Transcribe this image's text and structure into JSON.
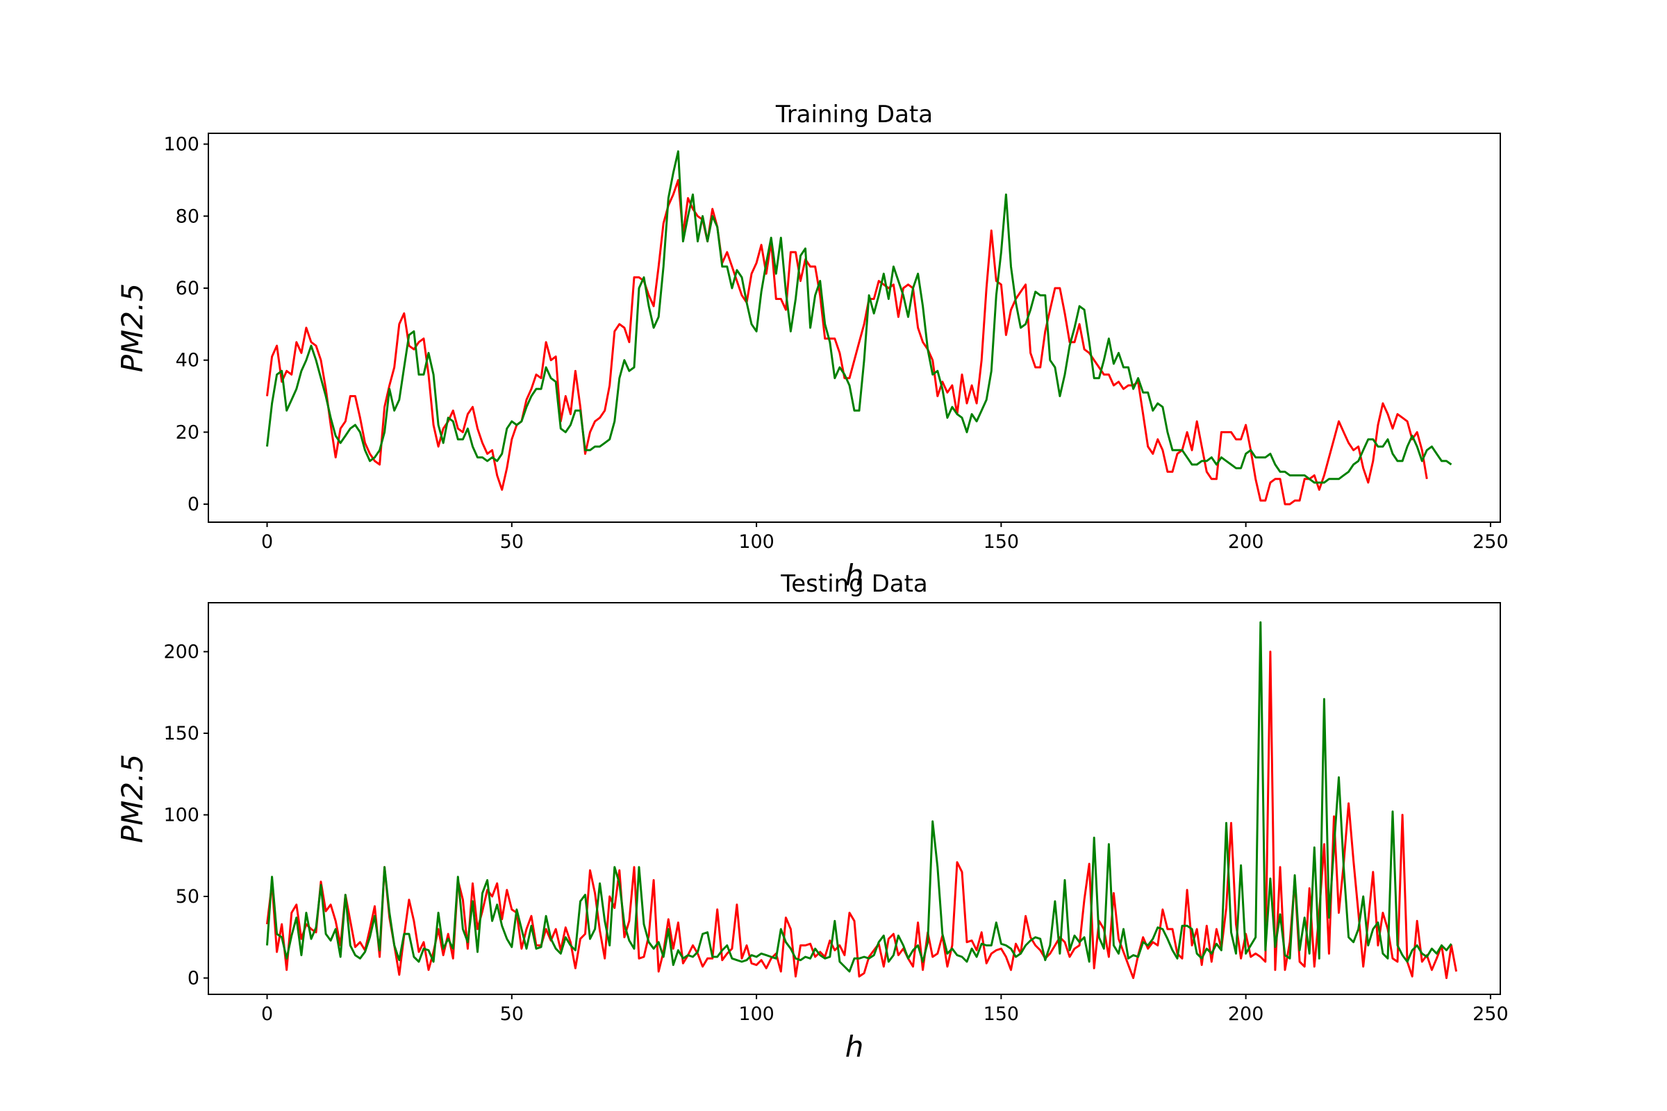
{
  "colors": {
    "red_series": "#ff0000",
    "green_series": "#008000",
    "axes": "#000000",
    "background": "#ffffff"
  },
  "chart_data": [
    {
      "type": "line",
      "title": "Training Data",
      "xlabel": "h",
      "ylabel": "PM2.5",
      "xlim": [
        -12,
        252
      ],
      "ylim": [
        -5,
        103
      ],
      "xticks": [
        0,
        50,
        100,
        150,
        200,
        250
      ],
      "yticks": [
        0,
        20,
        40,
        60,
        80,
        100
      ],
      "grid": false,
      "series": [
        {
          "color": "#ff0000",
          "values": [
            30,
            41,
            44,
            34,
            37,
            36,
            45,
            42,
            49,
            45,
            44,
            40,
            32,
            22,
            13,
            21,
            23,
            30,
            30,
            24,
            17,
            14,
            12,
            11,
            27,
            33,
            38,
            50,
            53,
            44,
            43,
            45,
            46,
            36,
            22,
            16,
            21,
            23,
            26,
            21,
            20,
            25,
            27,
            21,
            17,
            14,
            15,
            8,
            4,
            10,
            18,
            22,
            23,
            29,
            32,
            36,
            35,
            45,
            40,
            41,
            23,
            30,
            25,
            37,
            27,
            14,
            20,
            23,
            24,
            26,
            33,
            48,
            50,
            49,
            45,
            63,
            63,
            62,
            58,
            55,
            66,
            78,
            83,
            86,
            90,
            75,
            85,
            82,
            80,
            79,
            73,
            82,
            77,
            67,
            70,
            66,
            62,
            58,
            56,
            64,
            67,
            72,
            64,
            73,
            57,
            57,
            54,
            70,
            70,
            62,
            68,
            66,
            66,
            58,
            46,
            46,
            46,
            42,
            35,
            35,
            40,
            45,
            50,
            57,
            57,
            62,
            61,
            60,
            61,
            52,
            60,
            61,
            60,
            49,
            45,
            43,
            40,
            30,
            34,
            31,
            33,
            25,
            36,
            28,
            33,
            28,
            40,
            60,
            76,
            62,
            61,
            47,
            54,
            57,
            59,
            61,
            42,
            38,
            38,
            48,
            54,
            60,
            60,
            53,
            45,
            45,
            50,
            43,
            42,
            40,
            38,
            36,
            36,
            33,
            34,
            32,
            33,
            33,
            34,
            25,
            16,
            14,
            18,
            15,
            9,
            9,
            14,
            15,
            20,
            15,
            23,
            16,
            9,
            7,
            7,
            20,
            20,
            20,
            18,
            18,
            22,
            15,
            7,
            1,
            1,
            6,
            7,
            7,
            0,
            0,
            1,
            1,
            7,
            7,
            8,
            4,
            8,
            13,
            18,
            23,
            20,
            17,
            15,
            16,
            10,
            6,
            12,
            22,
            28,
            25,
            21,
            25,
            24,
            23,
            18,
            20,
            15,
            7
          ]
        },
        {
          "color": "#008000",
          "values": [
            16,
            28,
            36,
            37,
            26,
            29,
            32,
            37,
            40,
            44,
            40,
            35,
            30,
            24,
            19,
            17,
            19,
            21,
            22,
            20,
            15,
            12,
            13,
            15,
            20,
            32,
            26,
            29,
            38,
            47,
            48,
            36,
            36,
            42,
            36,
            22,
            17,
            24,
            23,
            18,
            18,
            21,
            16,
            13,
            13,
            12,
            13,
            12,
            14,
            21,
            23,
            22,
            23,
            27,
            30,
            32,
            32,
            38,
            35,
            34,
            21,
            20,
            22,
            26,
            26,
            15,
            15,
            16,
            16,
            17,
            18,
            23,
            35,
            40,
            37,
            38,
            60,
            63,
            55,
            49,
            52,
            66,
            85,
            92,
            98,
            73,
            80,
            86,
            73,
            80,
            73,
            80,
            77,
            66,
            66,
            60,
            65,
            63,
            56,
            50,
            48,
            59,
            67,
            74,
            64,
            74,
            59,
            48,
            57,
            69,
            71,
            49,
            58,
            62,
            50,
            45,
            35,
            38,
            36,
            33,
            26,
            26,
            40,
            58,
            53,
            58,
            64,
            57,
            66,
            62,
            58,
            52,
            60,
            64,
            55,
            43,
            36,
            37,
            32,
            24,
            27,
            25,
            24,
            20,
            25,
            23,
            26,
            29,
            37,
            58,
            70,
            86,
            66,
            56,
            49,
            50,
            54,
            59,
            58,
            58,
            40,
            38,
            30,
            36,
            44,
            49,
            55,
            54,
            45,
            35,
            35,
            40,
            46,
            39,
            42,
            38,
            38,
            32,
            35,
            31,
            31,
            26,
            28,
            27,
            20,
            15,
            15,
            15,
            13,
            11,
            11,
            12,
            12,
            13,
            11,
            13,
            12,
            11,
            10,
            10,
            14,
            15,
            13,
            13,
            13,
            14,
            11,
            9,
            9,
            8,
            8,
            8,
            8,
            7,
            6,
            6,
            6,
            7,
            7,
            7,
            8,
            9,
            11,
            12,
            15,
            18,
            18,
            16,
            16,
            18,
            14,
            12,
            12,
            16,
            19,
            16,
            12,
            15,
            16,
            14,
            12,
            12,
            11
          ]
        }
      ]
    },
    {
      "type": "line",
      "title": "Testing Data",
      "xlabel": "h",
      "ylabel": "PM2.5",
      "xlim": [
        -12,
        252
      ],
      "ylim": [
        -10,
        230
      ],
      "xticks": [
        0,
        50,
        100,
        150,
        200,
        250
      ],
      "yticks": [
        0,
        50,
        100,
        150,
        200
      ],
      "grid": false,
      "series": [
        {
          "color": "#ff0000",
          "values": [
            33,
            58,
            16,
            33,
            5,
            40,
            45,
            24,
            33,
            30,
            28,
            59,
            41,
            45,
            35,
            20,
            51,
            35,
            19,
            22,
            17,
            30,
            44,
            13,
            68,
            37,
            20,
            2,
            26,
            48,
            35,
            16,
            22,
            5,
            16,
            30,
            14,
            27,
            12,
            60,
            48,
            18,
            58,
            30,
            41,
            54,
            50,
            58,
            36,
            54,
            42,
            40,
            18,
            30,
            38,
            20,
            20,
            30,
            23,
            30,
            17,
            31,
            22,
            6,
            24,
            27,
            66,
            52,
            29,
            12,
            50,
            43,
            66,
            25,
            35,
            68,
            12,
            13,
            26,
            60,
            4,
            16,
            36,
            18,
            34,
            9,
            14,
            20,
            15,
            7,
            12,
            12,
            42,
            11,
            15,
            18,
            45,
            12,
            20,
            9,
            8,
            11,
            6,
            12,
            15,
            4,
            37,
            30,
            1,
            20,
            20,
            21,
            13,
            16,
            13,
            23,
            17,
            20,
            14,
            40,
            35,
            1,
            3,
            13,
            17,
            21,
            7,
            24,
            27,
            14,
            18,
            12,
            7,
            34,
            5,
            28,
            13,
            15,
            26,
            7,
            20,
            71,
            65,
            22,
            23,
            17,
            28,
            9,
            15,
            17,
            18,
            13,
            5,
            21,
            15,
            38,
            25,
            20,
            17,
            12,
            15,
            20,
            25,
            22,
            13,
            18,
            20,
            48,
            70,
            6,
            35,
            30,
            13,
            52,
            24,
            16,
            8,
            0,
            14,
            25,
            18,
            22,
            20,
            42,
            30,
            30,
            15,
            12,
            54,
            20,
            30,
            8,
            32,
            10,
            30,
            18,
            43,
            95,
            33,
            12,
            27,
            13,
            15,
            13,
            10,
            200,
            5,
            68,
            5,
            22,
            60,
            10,
            7,
            55,
            7,
            40,
            82,
            15,
            99,
            40,
            70,
            107,
            72,
            40,
            7,
            35,
            65,
            20,
            40,
            30,
            12,
            10,
            100,
            10,
            1,
            35,
            10,
            14,
            5,
            12,
            20,
            0,
            20,
            4
          ]
        },
        {
          "color": "#008000",
          "values": [
            20,
            62,
            27,
            25,
            12,
            26,
            37,
            14,
            40,
            24,
            31,
            57,
            27,
            23,
            30,
            13,
            51,
            20,
            14,
            12,
            16,
            25,
            38,
            17,
            68,
            40,
            20,
            11,
            27,
            27,
            13,
            10,
            18,
            17,
            10,
            40,
            18,
            24,
            18,
            62,
            30,
            22,
            47,
            16,
            52,
            60,
            35,
            45,
            32,
            24,
            19,
            42,
            30,
            18,
            32,
            18,
            19,
            38,
            24,
            18,
            15,
            25,
            20,
            17,
            47,
            51,
            24,
            30,
            58,
            35,
            20,
            68,
            58,
            33,
            23,
            18,
            68,
            33,
            22,
            18,
            22,
            13,
            30,
            8,
            17,
            12,
            14,
            13,
            16,
            27,
            28,
            13,
            13,
            17,
            20,
            12,
            11,
            10,
            11,
            14,
            13,
            15,
            14,
            13,
            12,
            30,
            22,
            18,
            12,
            11,
            13,
            12,
            18,
            14,
            12,
            13,
            35,
            10,
            7,
            4,
            12,
            12,
            13,
            12,
            14,
            22,
            26,
            10,
            14,
            26,
            20,
            12,
            17,
            20,
            10,
            22,
            96,
            68,
            27,
            15,
            18,
            14,
            13,
            10,
            18,
            13,
            21,
            20,
            20,
            34,
            21,
            20,
            18,
            13,
            15,
            20,
            23,
            25,
            24,
            11,
            20,
            47,
            15,
            60,
            17,
            26,
            22,
            25,
            10,
            86,
            25,
            18,
            82,
            20,
            15,
            30,
            12,
            14,
            13,
            22,
            20,
            24,
            31,
            30,
            24,
            17,
            12,
            32,
            32,
            30,
            15,
            12,
            18,
            15,
            21,
            17,
            95,
            28,
            15,
            69,
            15,
            20,
            25,
            218,
            17,
            61,
            19,
            39,
            14,
            12,
            63,
            17,
            37,
            15,
            80,
            12,
            171,
            37,
            80,
            123,
            68,
            25,
            22,
            30,
            50,
            20,
            30,
            34,
            15,
            12,
            102,
            20,
            14,
            10,
            17,
            20,
            15,
            13,
            18,
            15,
            20,
            17,
            21
          ]
        }
      ]
    }
  ]
}
